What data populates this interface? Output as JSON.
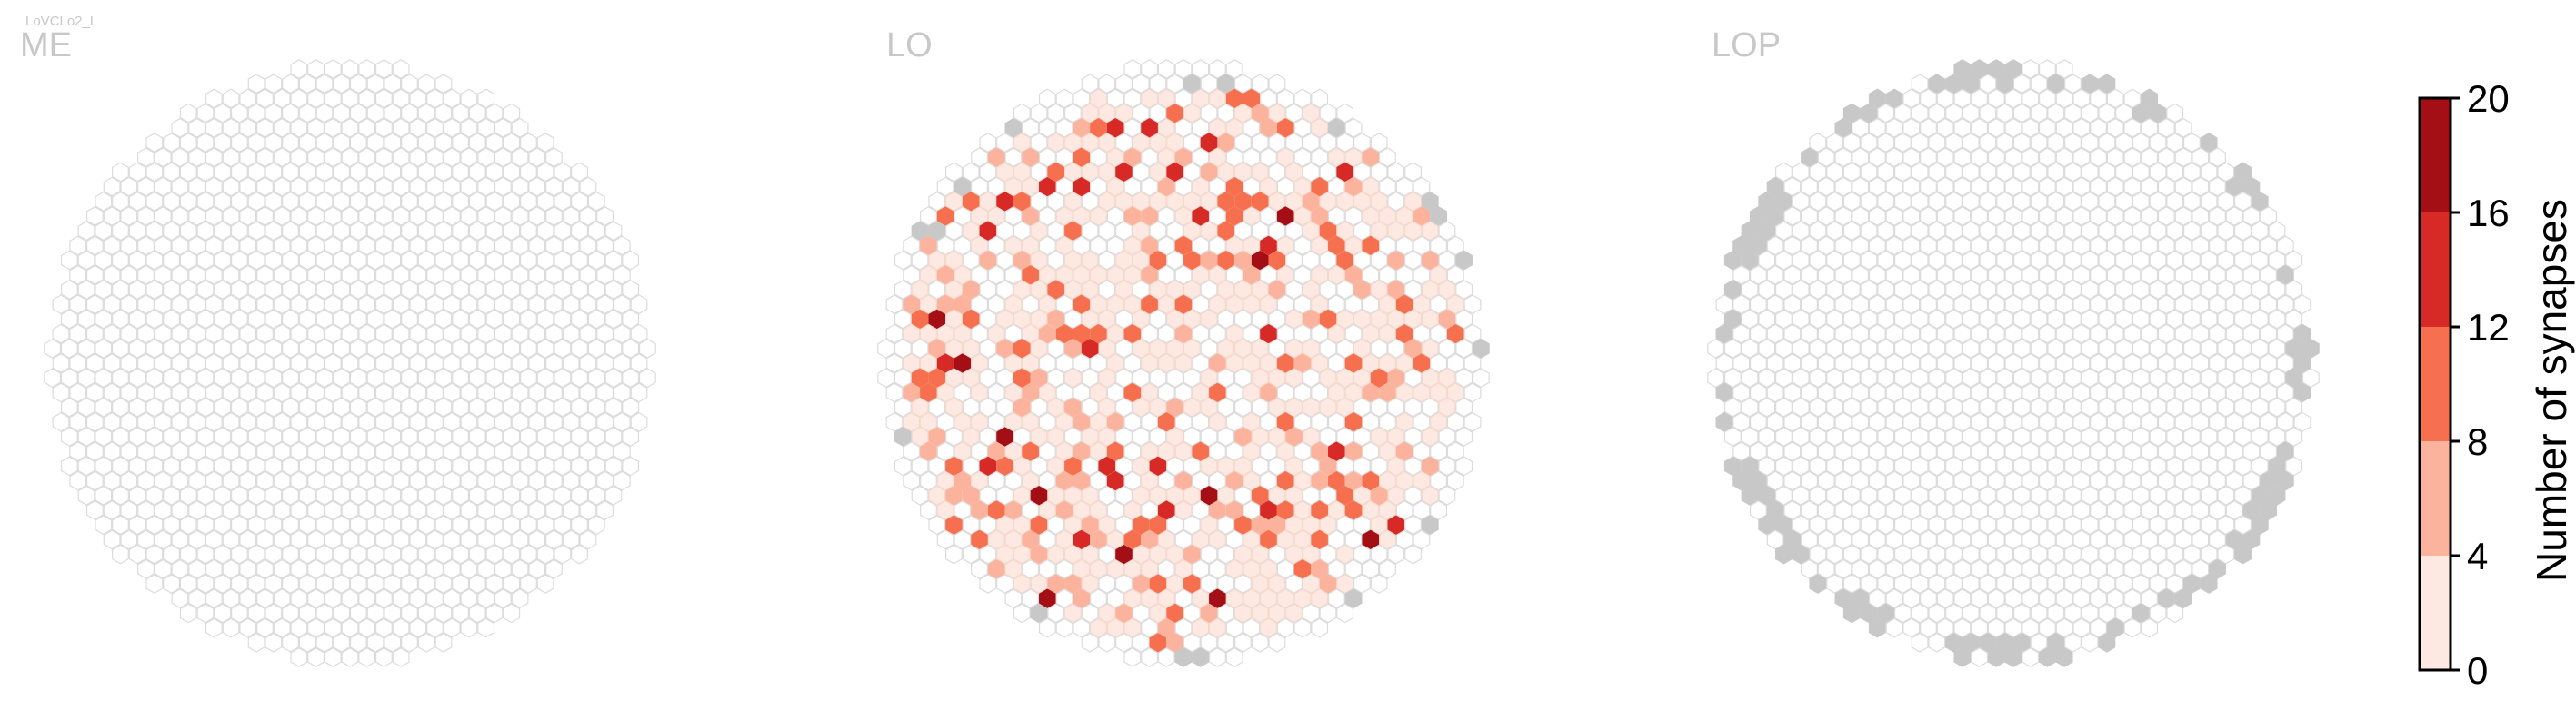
{
  "figure": {
    "cell_type": "LoVCLo2_L"
  },
  "chart_data": [
    {
      "type": "heatmap",
      "panel": "ME",
      "title": "ME",
      "grid": "hexagonal column map",
      "hex_count_est": 880,
      "missing_columns": [],
      "synapse_columns": [],
      "note_values": "no synapses in ME"
    },
    {
      "type": "heatmap",
      "panel": "LO",
      "title": "LO",
      "grid": "hexagonal column map",
      "missing_color": "#c8c8c8",
      "synapse_bins": [
        0,
        4,
        8,
        12,
        16,
        20
      ],
      "bin_counts_est": {
        "0-4": 150,
        "4-8": 48,
        "8-12": 32,
        "12-16": 14,
        "16-20": 3
      },
      "max_value": 20
    },
    {
      "type": "heatmap",
      "panel": "LOP",
      "title": "LOP",
      "grid": "hexagonal column map",
      "missing_color": "#c8c8c8",
      "synapse_columns": [],
      "note_values": "no synapses in LOP; gray border columns missing"
    }
  ],
  "colorbar": {
    "label": "Number of synapses",
    "ticks": [
      "0",
      "4",
      "8",
      "12",
      "16",
      "20"
    ],
    "colors": [
      "#fde9e1",
      "#fbb39d",
      "#f6704f",
      "#d72a26",
      "#a40f16"
    ]
  },
  "colors": {
    "empty_hex_stroke": "#dcdcdc",
    "missing_hex": "#c8c8c8",
    "panel_title": "#c8c8c8"
  }
}
